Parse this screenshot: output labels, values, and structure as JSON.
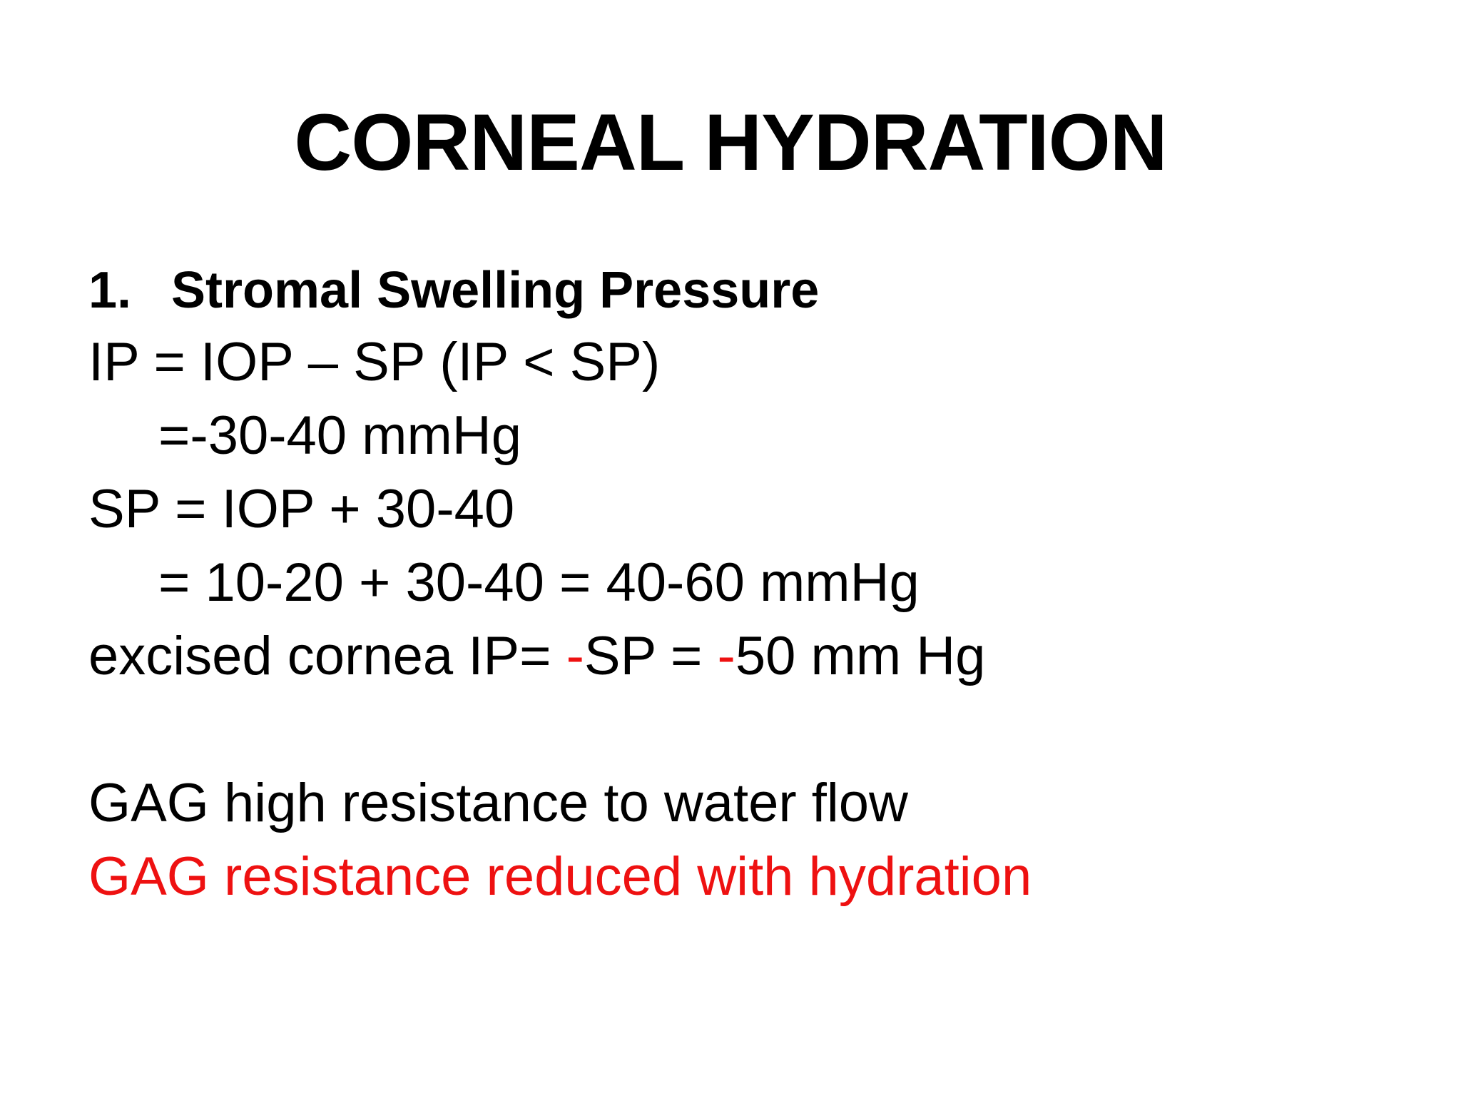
{
  "slide": {
    "title": "CORNEAL HYDRATION",
    "heading": {
      "number": "1.",
      "text": "Stromal Swelling Pressure"
    },
    "lines": {
      "l1": "IP  = IOP – SP (IP < SP)",
      "l2": "=-30-40 mmHg",
      "l3": "SP = IOP + 30-40",
      "l4": "= 10-20 + 30-40 = 40-60 mmHg",
      "l5": {
        "part1": "excised cornea IP= ",
        "minus1": "-",
        "part2": "SP = ",
        "minus2": "-",
        "part3": "50 mm Hg"
      },
      "l6": "GAG high resistance to water flow",
      "l7": "GAG resistance reduced with hydration"
    },
    "colors": {
      "text": "#000000",
      "highlight": "#ee1111",
      "background": "#ffffff"
    }
  }
}
